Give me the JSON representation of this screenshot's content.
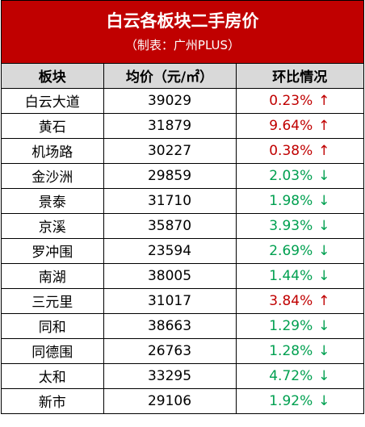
{
  "header": {
    "title": "白云各板块二手房价",
    "subtitle": "（制表：广州PLUS）"
  },
  "columns": [
    "板块",
    "均价（元/㎡）",
    "环比情况"
  ],
  "colors": {
    "banner": "#c00000",
    "header_row": "#d9d9d9",
    "up": "#c00000",
    "down": "#00a050"
  },
  "rows": [
    {
      "area": "白云大道",
      "price": "39029",
      "change": "0.23%",
      "direction": "up",
      "arrow": "↑"
    },
    {
      "area": "黄石",
      "price": "31879",
      "change": "9.64%",
      "direction": "up",
      "arrow": "↑"
    },
    {
      "area": "机场路",
      "price": "30227",
      "change": "0.38%",
      "direction": "up",
      "arrow": "↑"
    },
    {
      "area": "金沙洲",
      "price": "29859",
      "change": "2.03%",
      "direction": "down",
      "arrow": "↓"
    },
    {
      "area": "景泰",
      "price": "31710",
      "change": "1.98%",
      "direction": "down",
      "arrow": "↓"
    },
    {
      "area": "京溪",
      "price": "35870",
      "change": "3.93%",
      "direction": "down",
      "arrow": "↓"
    },
    {
      "area": "罗冲围",
      "price": "23594",
      "change": "2.69%",
      "direction": "down",
      "arrow": "↓"
    },
    {
      "area": "南湖",
      "price": "38005",
      "change": "1.44%",
      "direction": "down",
      "arrow": "↓"
    },
    {
      "area": "三元里",
      "price": "31017",
      "change": "3.84%",
      "direction": "up",
      "arrow": "↑"
    },
    {
      "area": "同和",
      "price": "38663",
      "change": "1.29%",
      "direction": "down",
      "arrow": "↓"
    },
    {
      "area": "同德围",
      "price": "26763",
      "change": "1.28%",
      "direction": "down",
      "arrow": "↓"
    },
    {
      "area": "太和",
      "price": "33295",
      "change": "4.72%",
      "direction": "down",
      "arrow": "↓"
    },
    {
      "area": "新市",
      "price": "29106",
      "change": "1.92%",
      "direction": "down",
      "arrow": "↓"
    }
  ]
}
